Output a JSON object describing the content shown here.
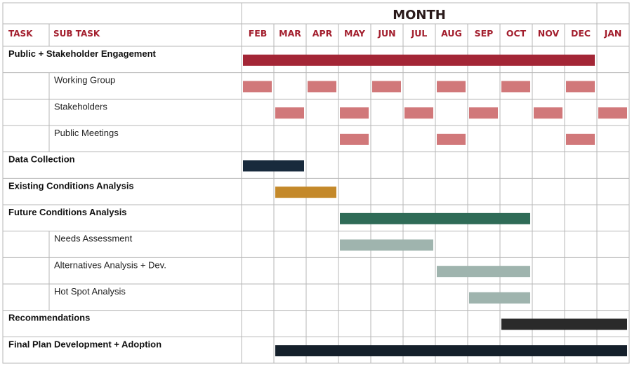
{
  "header": {
    "title": "MONTH",
    "task_label": "TASK",
    "subtask_label": "SUB TASK"
  },
  "colors": {
    "header_red": "#a31f2e",
    "grid": "#b7b7b7",
    "engagement": "#a32636",
    "engagement_sub": "#d1787a",
    "data": "#182a3c",
    "existing": "#c4892a",
    "future": "#2f6b57",
    "future_sub": "#9fb4ae",
    "recommend": "#2a2a2a",
    "final": "#15202b"
  },
  "months": [
    "FEB",
    "MAR",
    "APR",
    "MAY",
    "JUN",
    "JUL",
    "AUG",
    "SEP",
    "OCT",
    "NOV",
    "DEC",
    "JAN"
  ],
  "rows": [
    {
      "task": "Public + Stakeholder Engagement",
      "subtask": ""
    },
    {
      "task": "",
      "subtask": "Working Group"
    },
    {
      "task": "",
      "subtask": "Stakeholders"
    },
    {
      "task": "",
      "subtask": "Public Meetings"
    },
    {
      "task": "Data Collection",
      "subtask": ""
    },
    {
      "task": "Existing Conditions Analysis",
      "subtask": ""
    },
    {
      "task": "Future Conditions Analysis",
      "subtask": ""
    },
    {
      "task": "",
      "subtask": "Needs Assessment"
    },
    {
      "task": "",
      "subtask": "Alternatives Analysis + Dev."
    },
    {
      "task": "",
      "subtask": "Hot Spot Analysis"
    },
    {
      "task": "Recommendations",
      "subtask": ""
    },
    {
      "task": "Final Plan Development + Adoption",
      "subtask": ""
    }
  ],
  "chart_data": {
    "type": "gantt",
    "title": "MONTH",
    "categories": [
      "FEB",
      "MAR",
      "APR",
      "MAY",
      "JUN",
      "JUL",
      "AUG",
      "SEP",
      "OCT",
      "NOV",
      "DEC",
      "JAN"
    ],
    "bars": [
      {
        "row": 0,
        "segments": [
          [
            "FEB",
            "DEC"
          ]
        ],
        "color": "engagement"
      },
      {
        "row": 1,
        "segments": [
          [
            "FEB",
            "FEB"
          ],
          [
            "APR",
            "APR"
          ],
          [
            "JUN",
            "JUN"
          ],
          [
            "AUG",
            "AUG"
          ],
          [
            "OCT",
            "OCT"
          ],
          [
            "DEC",
            "DEC"
          ]
        ],
        "color": "engagement_sub"
      },
      {
        "row": 2,
        "segments": [
          [
            "MAR",
            "MAR"
          ],
          [
            "MAY",
            "MAY"
          ],
          [
            "JUL",
            "JUL"
          ],
          [
            "SEP",
            "SEP"
          ],
          [
            "NOV",
            "NOV"
          ],
          [
            "JAN",
            "JAN"
          ]
        ],
        "color": "engagement_sub"
      },
      {
        "row": 3,
        "segments": [
          [
            "MAY",
            "MAY"
          ],
          [
            "AUG",
            "AUG"
          ],
          [
            "DEC",
            "DEC"
          ]
        ],
        "color": "engagement_sub"
      },
      {
        "row": 4,
        "segments": [
          [
            "FEB",
            "MAR"
          ]
        ],
        "color": "data"
      },
      {
        "row": 5,
        "segments": [
          [
            "MAR",
            "APR"
          ]
        ],
        "color": "existing"
      },
      {
        "row": 6,
        "segments": [
          [
            "MAY",
            "OCT"
          ]
        ],
        "color": "future"
      },
      {
        "row": 7,
        "segments": [
          [
            "MAY",
            "JUL"
          ]
        ],
        "color": "future_sub"
      },
      {
        "row": 8,
        "segments": [
          [
            "AUG",
            "OCT"
          ]
        ],
        "color": "future_sub"
      },
      {
        "row": 9,
        "segments": [
          [
            "SEP",
            "OCT"
          ]
        ],
        "color": "future_sub"
      },
      {
        "row": 10,
        "segments": [
          [
            "OCT",
            "JAN"
          ]
        ],
        "color": "recommend"
      },
      {
        "row": 11,
        "segments": [
          [
            "MAR",
            "JAN"
          ]
        ],
        "color": "final"
      }
    ]
  }
}
